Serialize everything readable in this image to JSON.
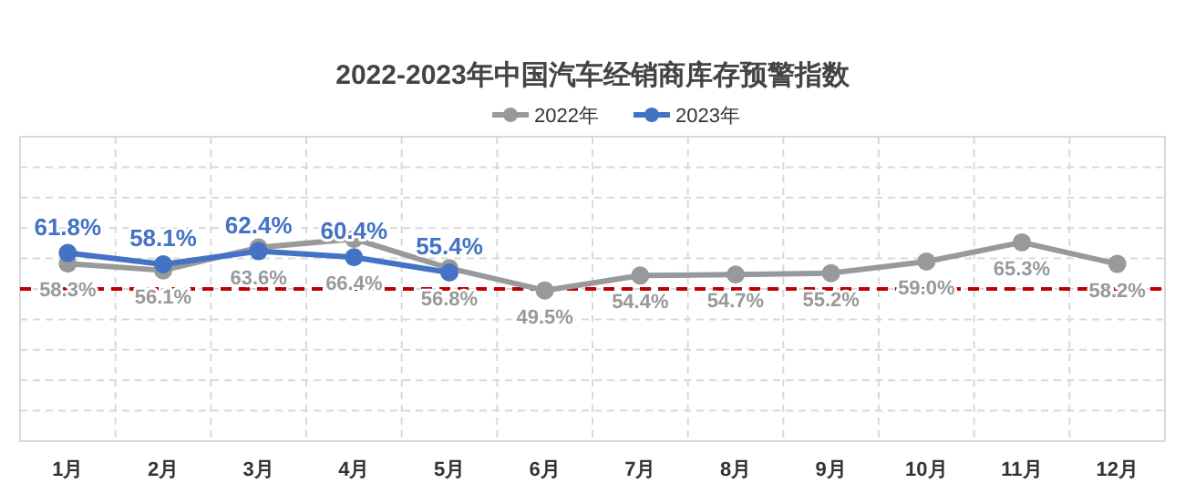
{
  "chart_data": {
    "type": "line",
    "title": "2022-2023年中国汽车经销商库存预警指数",
    "categories": [
      "1月",
      "2月",
      "3月",
      "4月",
      "5月",
      "6月",
      "7月",
      "8月",
      "9月",
      "10月",
      "11月",
      "12月"
    ],
    "series": [
      {
        "name": "2022年",
        "color": "#999999",
        "values": [
          58.3,
          56.1,
          63.6,
          66.4,
          56.8,
          49.5,
          54.4,
          54.7,
          55.2,
          59.0,
          65.3,
          58.2
        ],
        "value_labels": [
          "58.3%",
          "56.1%",
          "63.6%",
          "66.4%",
          "56.8%",
          "49.5%",
          "54.4%",
          "54.7%",
          "55.2%",
          "59.0%",
          "65.3%",
          "58.2%"
        ]
      },
      {
        "name": "2023年",
        "color": "#4472c4",
        "values": [
          61.8,
          58.1,
          62.4,
          60.4,
          55.4,
          null,
          null,
          null,
          null,
          null,
          null,
          null
        ],
        "value_labels": [
          "61.8%",
          "58.1%",
          "62.4%",
          "60.4%",
          "55.4%",
          null,
          null,
          null,
          null,
          null,
          null,
          null
        ]
      }
    ],
    "ylim": [
      0,
      100
    ],
    "yticks": [
      {
        "value": 0,
        "label": null
      },
      {
        "value": 10,
        "label": null
      },
      {
        "value": 20,
        "label": null
      },
      {
        "value": 30,
        "label": null
      },
      {
        "value": 40,
        "label": null
      },
      {
        "value": 50,
        "label": null
      },
      {
        "value": 60,
        "label": null
      },
      {
        "value": 70,
        "label": null
      },
      {
        "value": 80,
        "label": null
      },
      {
        "value": 90,
        "label": null
      },
      {
        "value": 100,
        "label": null
      }
    ],
    "tick_labels": "x",
    "ref_lines": [
      {
        "axis": "y",
        "value": 50,
        "label": null,
        "color": "#c00000",
        "line_style": "dashed"
      }
    ],
    "grid": true,
    "legend": "top",
    "marker": "circle",
    "line_style": "solid"
  }
}
